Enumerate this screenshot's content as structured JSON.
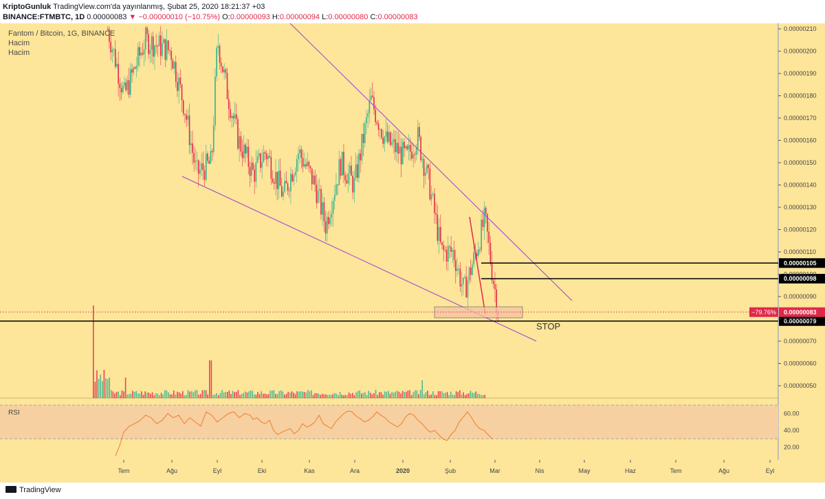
{
  "header": {
    "author": "KriptoGunluk",
    "published": "TradingView.com'da yayınlanmış, Şubat 25, 2020 18:21:37 +03",
    "symbol": "BINANCE:FTMBTC, 1D",
    "price": "0.00000083",
    "change_arrow": "▼",
    "change": "−0.00000010 (−10.75%)",
    "o_label": "O:",
    "o_value": "0.00000093",
    "h_label": "H:",
    "h_value": "0.00000094",
    "l_label": "L:",
    "l_value": "0.00000080",
    "c_label": "C:",
    "c_value": "0.00000083"
  },
  "legend": {
    "title": "Fantom / Bitcoin, 1G, BINANCE",
    "volume1": "Hacim",
    "volume2": "Hacim"
  },
  "footer": {
    "brand": "TradingView"
  },
  "colors": {
    "background": "#fde59a",
    "bull": "#2fb38f",
    "bear": "#e0294a",
    "wedge": "#9c40d6",
    "box": "#f6c2a4",
    "rsi_band": "#f6d0a0",
    "rsi_line": "#ef7d2e",
    "price_label": "#e0294a"
  },
  "chart_data": {
    "type": "candlestick",
    "price_axis": {
      "ticks": [
        "0.00000210",
        "0.00000200",
        "0.00000190",
        "0.00000180",
        "0.00000170",
        "0.00000160",
        "0.00000150",
        "0.00000140",
        "0.00000130",
        "0.00000120",
        "0.00000110",
        "0.00000100",
        "0.00000090",
        "0.00000080",
        "0.00000070",
        "0.00000060",
        "0.00000050"
      ],
      "range": [
        4.4e-07,
        2.11e-06
      ]
    },
    "time_axis": {
      "ticks": [
        "Tem",
        "Ağu",
        "Eyl",
        "Eki",
        "Kas",
        "Ara",
        "2020",
        "Şub",
        "Mar",
        "Nis",
        "May",
        "Haz",
        "Tem",
        "Ağu",
        "Eyl"
      ]
    },
    "price_path": [
      {
        "date": "2019-06-20",
        "price": 2.1e-06
      },
      {
        "date": "2019-07-01",
        "price": 1.8e-06
      },
      {
        "date": "2019-07-15",
        "price": 2.05e-06
      },
      {
        "date": "2019-08-01",
        "price": 2e-06
      },
      {
        "date": "2019-08-10",
        "price": 1.75e-06
      },
      {
        "date": "2019-08-18",
        "price": 1.45e-06
      },
      {
        "date": "2019-08-28",
        "price": 1.5e-06
      },
      {
        "date": "2019-09-01",
        "price": 2.05e-06
      },
      {
        "date": "2019-09-08",
        "price": 1.8e-06
      },
      {
        "date": "2019-09-15",
        "price": 1.6e-06
      },
      {
        "date": "2019-09-25",
        "price": 1.45e-06
      },
      {
        "date": "2019-10-03",
        "price": 1.55e-06
      },
      {
        "date": "2019-10-15",
        "price": 1.35e-06
      },
      {
        "date": "2019-10-25",
        "price": 1.55e-06
      },
      {
        "date": "2019-11-05",
        "price": 1.4e-06
      },
      {
        "date": "2019-11-12",
        "price": 1.22e-06
      },
      {
        "date": "2019-11-22",
        "price": 1.5e-06
      },
      {
        "date": "2019-12-01",
        "price": 1.4e-06
      },
      {
        "date": "2019-12-12",
        "price": 1.78e-06
      },
      {
        "date": "2019-12-22",
        "price": 1.6e-06
      },
      {
        "date": "2020-01-05",
        "price": 1.52e-06
      },
      {
        "date": "2020-01-12",
        "price": 1.62e-06
      },
      {
        "date": "2020-01-20",
        "price": 1.4e-06
      },
      {
        "date": "2020-01-28",
        "price": 1.1e-06
      },
      {
        "date": "2020-02-05",
        "price": 1.1e-06
      },
      {
        "date": "2020-02-12",
        "price": 9.2e-07
      },
      {
        "date": "2020-02-20",
        "price": 1.1e-06
      },
      {
        "date": "2020-02-26",
        "price": 1.25e-06
      },
      {
        "date": "2020-03-02",
        "price": 1e-06
      },
      {
        "date": "2020-03-06",
        "price": 8.3e-07
      }
    ],
    "current_price_label": "0.00000083",
    "current_change_label": "−79.76%",
    "levels": [
      {
        "value": 1.05e-06,
        "label": "0.00000105"
      },
      {
        "value": 9.8e-07,
        "label": "0.00000098"
      },
      {
        "value": 7.9e-07,
        "label": "0.00000079"
      }
    ],
    "annotations": [
      {
        "text": "STOP"
      }
    ],
    "rsi": {
      "label": "RSI",
      "ticks": [
        "60.00",
        "40.00",
        "20.00"
      ],
      "band": [
        30,
        70
      ],
      "range": [
        10,
        75
      ],
      "values": [
        [
          0,
          10
        ],
        [
          3,
          22
        ],
        [
          6,
          38
        ],
        [
          10,
          45
        ],
        [
          14,
          48
        ],
        [
          18,
          52
        ],
        [
          22,
          58
        ],
        [
          26,
          55
        ],
        [
          30,
          48
        ],
        [
          34,
          52
        ],
        [
          38,
          60
        ],
        [
          42,
          55
        ],
        [
          46,
          58
        ],
        [
          50,
          48
        ],
        [
          54,
          55
        ],
        [
          58,
          50
        ],
        [
          62,
          45
        ],
        [
          66,
          62
        ],
        [
          70,
          58
        ],
        [
          74,
          50
        ],
        [
          78,
          55
        ],
        [
          82,
          60
        ],
        [
          86,
          62
        ],
        [
          90,
          55
        ],
        [
          94,
          60
        ],
        [
          98,
          58
        ],
        [
          100,
          53
        ],
        [
          103,
          55
        ],
        [
          106,
          50
        ],
        [
          109,
          48
        ],
        [
          112,
          52
        ],
        [
          115,
          40
        ],
        [
          118,
          35
        ],
        [
          121,
          38
        ],
        [
          124,
          40
        ],
        [
          127,
          42
        ],
        [
          130,
          36
        ],
        [
          133,
          40
        ],
        [
          136,
          48
        ],
        [
          139,
          44
        ],
        [
          142,
          46
        ],
        [
          145,
          50
        ],
        [
          148,
          58
        ],
        [
          151,
          48
        ],
        [
          154,
          45
        ],
        [
          157,
          42
        ],
        [
          160,
          50
        ],
        [
          163,
          55
        ],
        [
          166,
          60
        ],
        [
          169,
          63
        ],
        [
          172,
          62
        ],
        [
          175,
          57
        ],
        [
          178,
          54
        ],
        [
          181,
          50
        ],
        [
          184,
          52
        ],
        [
          187,
          56
        ],
        [
          190,
          62
        ],
        [
          193,
          58
        ],
        [
          196,
          55
        ],
        [
          199,
          50
        ],
        [
          202,
          47
        ],
        [
          205,
          44
        ],
        [
          208,
          48
        ],
        [
          211,
          56
        ],
        [
          214,
          60
        ],
        [
          217,
          58
        ],
        [
          220,
          52
        ],
        [
          223,
          48
        ],
        [
          226,
          42
        ],
        [
          229,
          38
        ],
        [
          232,
          40
        ],
        [
          235,
          35
        ],
        [
          238,
          30
        ],
        [
          241,
          28
        ],
        [
          244,
          35
        ],
        [
          247,
          40
        ],
        [
          250,
          50
        ],
        [
          253,
          56
        ],
        [
          256,
          62
        ],
        [
          259,
          55
        ],
        [
          262,
          47
        ],
        [
          265,
          42
        ],
        [
          268,
          40
        ],
        [
          271,
          35
        ],
        [
          274,
          30
        ]
      ]
    }
  }
}
